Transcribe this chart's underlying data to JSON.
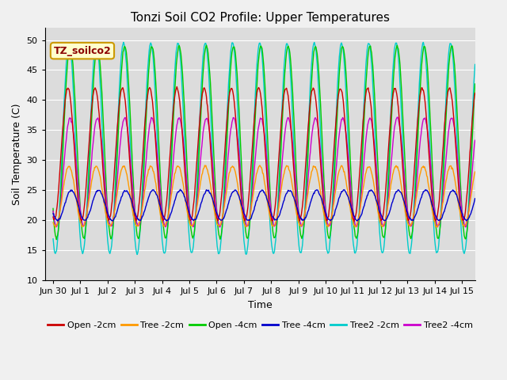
{
  "title": "Tonzi Soil CO2 Profile: Upper Temperatures",
  "xlabel": "Time",
  "ylabel": "Soil Temperature (C)",
  "xlim": [
    -0.3,
    15.5
  ],
  "ylim": [
    10,
    52
  ],
  "yticks": [
    10,
    15,
    20,
    25,
    30,
    35,
    40,
    45,
    50
  ],
  "xtick_positions": [
    0,
    1,
    2,
    3,
    4,
    5,
    6,
    7,
    8,
    9,
    10,
    11,
    12,
    13,
    14,
    15
  ],
  "xtick_labels": [
    "Jun 30",
    "Jul 1",
    "Jul 2",
    "Jul 3",
    "Jul 4",
    "Jul 5",
    "Jul 6",
    "Jul 7",
    "Jul 8",
    "Jul 9",
    "Jul 10",
    "Jul 11",
    "Jul 12",
    "Jul 13",
    "Jul 14",
    "Jul 15"
  ],
  "legend_entries": [
    "Open -2cm",
    "Tree -2cm",
    "Open -4cm",
    "Tree -4cm",
    "Tree2 -2cm",
    "Tree2 -4cm"
  ],
  "legend_colors": [
    "#cc0000",
    "#ff9900",
    "#00cc00",
    "#0000cc",
    "#00cccc",
    "#cc00cc"
  ],
  "annotation_text": "TZ_soilco2",
  "bg_color": "#dcdcdc",
  "grid_color": "#ffffff",
  "fig_bg_color": "#f0f0f0",
  "title_fontsize": 11,
  "label_fontsize": 9,
  "tick_fontsize": 8,
  "legend_fontsize": 8,
  "linewidth": 1.0
}
